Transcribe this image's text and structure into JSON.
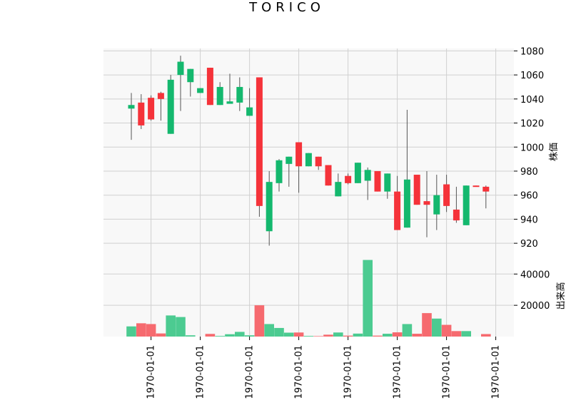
{
  "chart_data": {
    "type": "candlestick",
    "title": "TORICO",
    "price_panel": {
      "ylabel": "株価",
      "ylim": [
        910,
        1082
      ],
      "yticks": [
        920,
        940,
        960,
        980,
        1000,
        1020,
        1040,
        1060,
        1080
      ],
      "ytick_labels": [
        "920",
        "940",
        "960",
        "980",
        "1000",
        "1020",
        "1040",
        "1060",
        "1080"
      ],
      "grid": true
    },
    "volume_panel": {
      "ylabel": "出来高",
      "ylim": [
        0,
        52000
      ],
      "yticks": [
        20000,
        40000
      ],
      "ytick_labels": [
        "20000",
        "40000"
      ],
      "grid": true
    },
    "x_tick_labels": [
      "1970-01-01",
      "1970-01-01",
      "1970-01-01",
      "1970-01-01",
      "1970-01-01",
      "1970-01-01",
      "1970-01-01",
      "1970-01-01"
    ],
    "x_tick_positions": [
      2,
      7,
      12,
      17,
      22,
      27,
      32,
      37
    ],
    "up_color": "#14b86e",
    "down_color": "#f5333a",
    "up_volume_color": "#4ccb91",
    "down_volume_color": "#f66a6f",
    "candles": [
      {
        "open": 1032,
        "high": 1045,
        "low": 1006,
        "close": 1035,
        "volume": 6500
      },
      {
        "open": 1037,
        "high": 1044,
        "low": 1015,
        "close": 1018,
        "volume": 8500
      },
      {
        "open": 1041,
        "high": 1043,
        "low": 1022,
        "close": 1023,
        "volume": 8000
      },
      {
        "open": 1045,
        "high": 1046,
        "low": 1022,
        "close": 1040,
        "volume": 2000
      },
      {
        "open": 1011,
        "high": 1060,
        "low": 1011,
        "close": 1056,
        "volume": 13500
      },
      {
        "open": 1060,
        "high": 1076,
        "low": 1030,
        "close": 1071,
        "volume": 12500
      },
      {
        "open": 1054,
        "high": 1065,
        "low": 1042,
        "close": 1065,
        "volume": 800
      },
      {
        "open": 1045,
        "high": 1049,
        "low": 1045,
        "close": 1049,
        "volume": 0
      },
      {
        "open": 1066,
        "high": 1066,
        "low": 1035,
        "close": 1035,
        "volume": 1700
      },
      {
        "open": 1035,
        "high": 1054,
        "low": 1035,
        "close": 1050,
        "volume": 400
      },
      {
        "open": 1036,
        "high": 1061,
        "low": 1036,
        "close": 1038,
        "volume": 1500
      },
      {
        "open": 1037,
        "high": 1058,
        "low": 1030,
        "close": 1050,
        "volume": 3000
      },
      {
        "open": 1026,
        "high": 1049,
        "low": 1026,
        "close": 1033,
        "volume": 800
      },
      {
        "open": 1058,
        "high": 1058,
        "low": 942,
        "close": 951,
        "volume": 20000
      },
      {
        "open": 930,
        "high": 980,
        "low": 918,
        "close": 971,
        "volume": 8000
      },
      {
        "open": 970,
        "high": 990,
        "low": 963,
        "close": 989,
        "volume": 5500
      },
      {
        "open": 986,
        "high": 992,
        "low": 967,
        "close": 992,
        "volume": 2500
      },
      {
        "open": 1004,
        "high": 1004,
        "low": 962,
        "close": 984,
        "volume": 2600
      },
      {
        "open": 984,
        "high": 995,
        "low": 984,
        "close": 995,
        "volume": 400
      },
      {
        "open": 992,
        "high": 992,
        "low": 981,
        "close": 984,
        "volume": 300
      },
      {
        "open": 985,
        "high": 985,
        "low": 968,
        "close": 968,
        "volume": 1200
      },
      {
        "open": 959,
        "high": 978,
        "low": 959,
        "close": 971,
        "volume": 2600
      },
      {
        "open": 976,
        "high": 978,
        "low": 969,
        "close": 970,
        "volume": 600
      },
      {
        "open": 970,
        "high": 987,
        "low": 970,
        "close": 987,
        "volume": 1900
      },
      {
        "open": 972,
        "high": 983,
        "low": 956,
        "close": 981,
        "volume": 49000
      },
      {
        "open": 980,
        "high": 980,
        "low": 963,
        "close": 963,
        "volume": 600
      },
      {
        "open": 963,
        "high": 978,
        "low": 957,
        "close": 978,
        "volume": 1800
      },
      {
        "open": 963,
        "high": 976,
        "low": 931,
        "close": 931,
        "volume": 2700
      },
      {
        "open": 933,
        "high": 1031,
        "low": 933,
        "close": 973,
        "volume": 8000
      },
      {
        "open": 977,
        "high": 977,
        "low": 952,
        "close": 952,
        "volume": 1800
      },
      {
        "open": 955,
        "high": 980,
        "low": 925,
        "close": 952,
        "volume": 15000
      },
      {
        "open": 944,
        "high": 977,
        "low": 931,
        "close": 960,
        "volume": 11500
      },
      {
        "open": 969,
        "high": 977,
        "low": 946,
        "close": 951,
        "volume": 7500
      },
      {
        "open": 948,
        "high": 967,
        "low": 937,
        "close": 939,
        "volume": 3500
      },
      {
        "open": 935,
        "high": 968,
        "low": 935,
        "close": 968,
        "volume": 3500
      },
      {
        "open": 968,
        "high": 968,
        "low": 967,
        "close": 967,
        "volume": 0
      },
      {
        "open": 967,
        "high": 968,
        "low": 949,
        "close": 963,
        "volume": 1600
      }
    ]
  }
}
